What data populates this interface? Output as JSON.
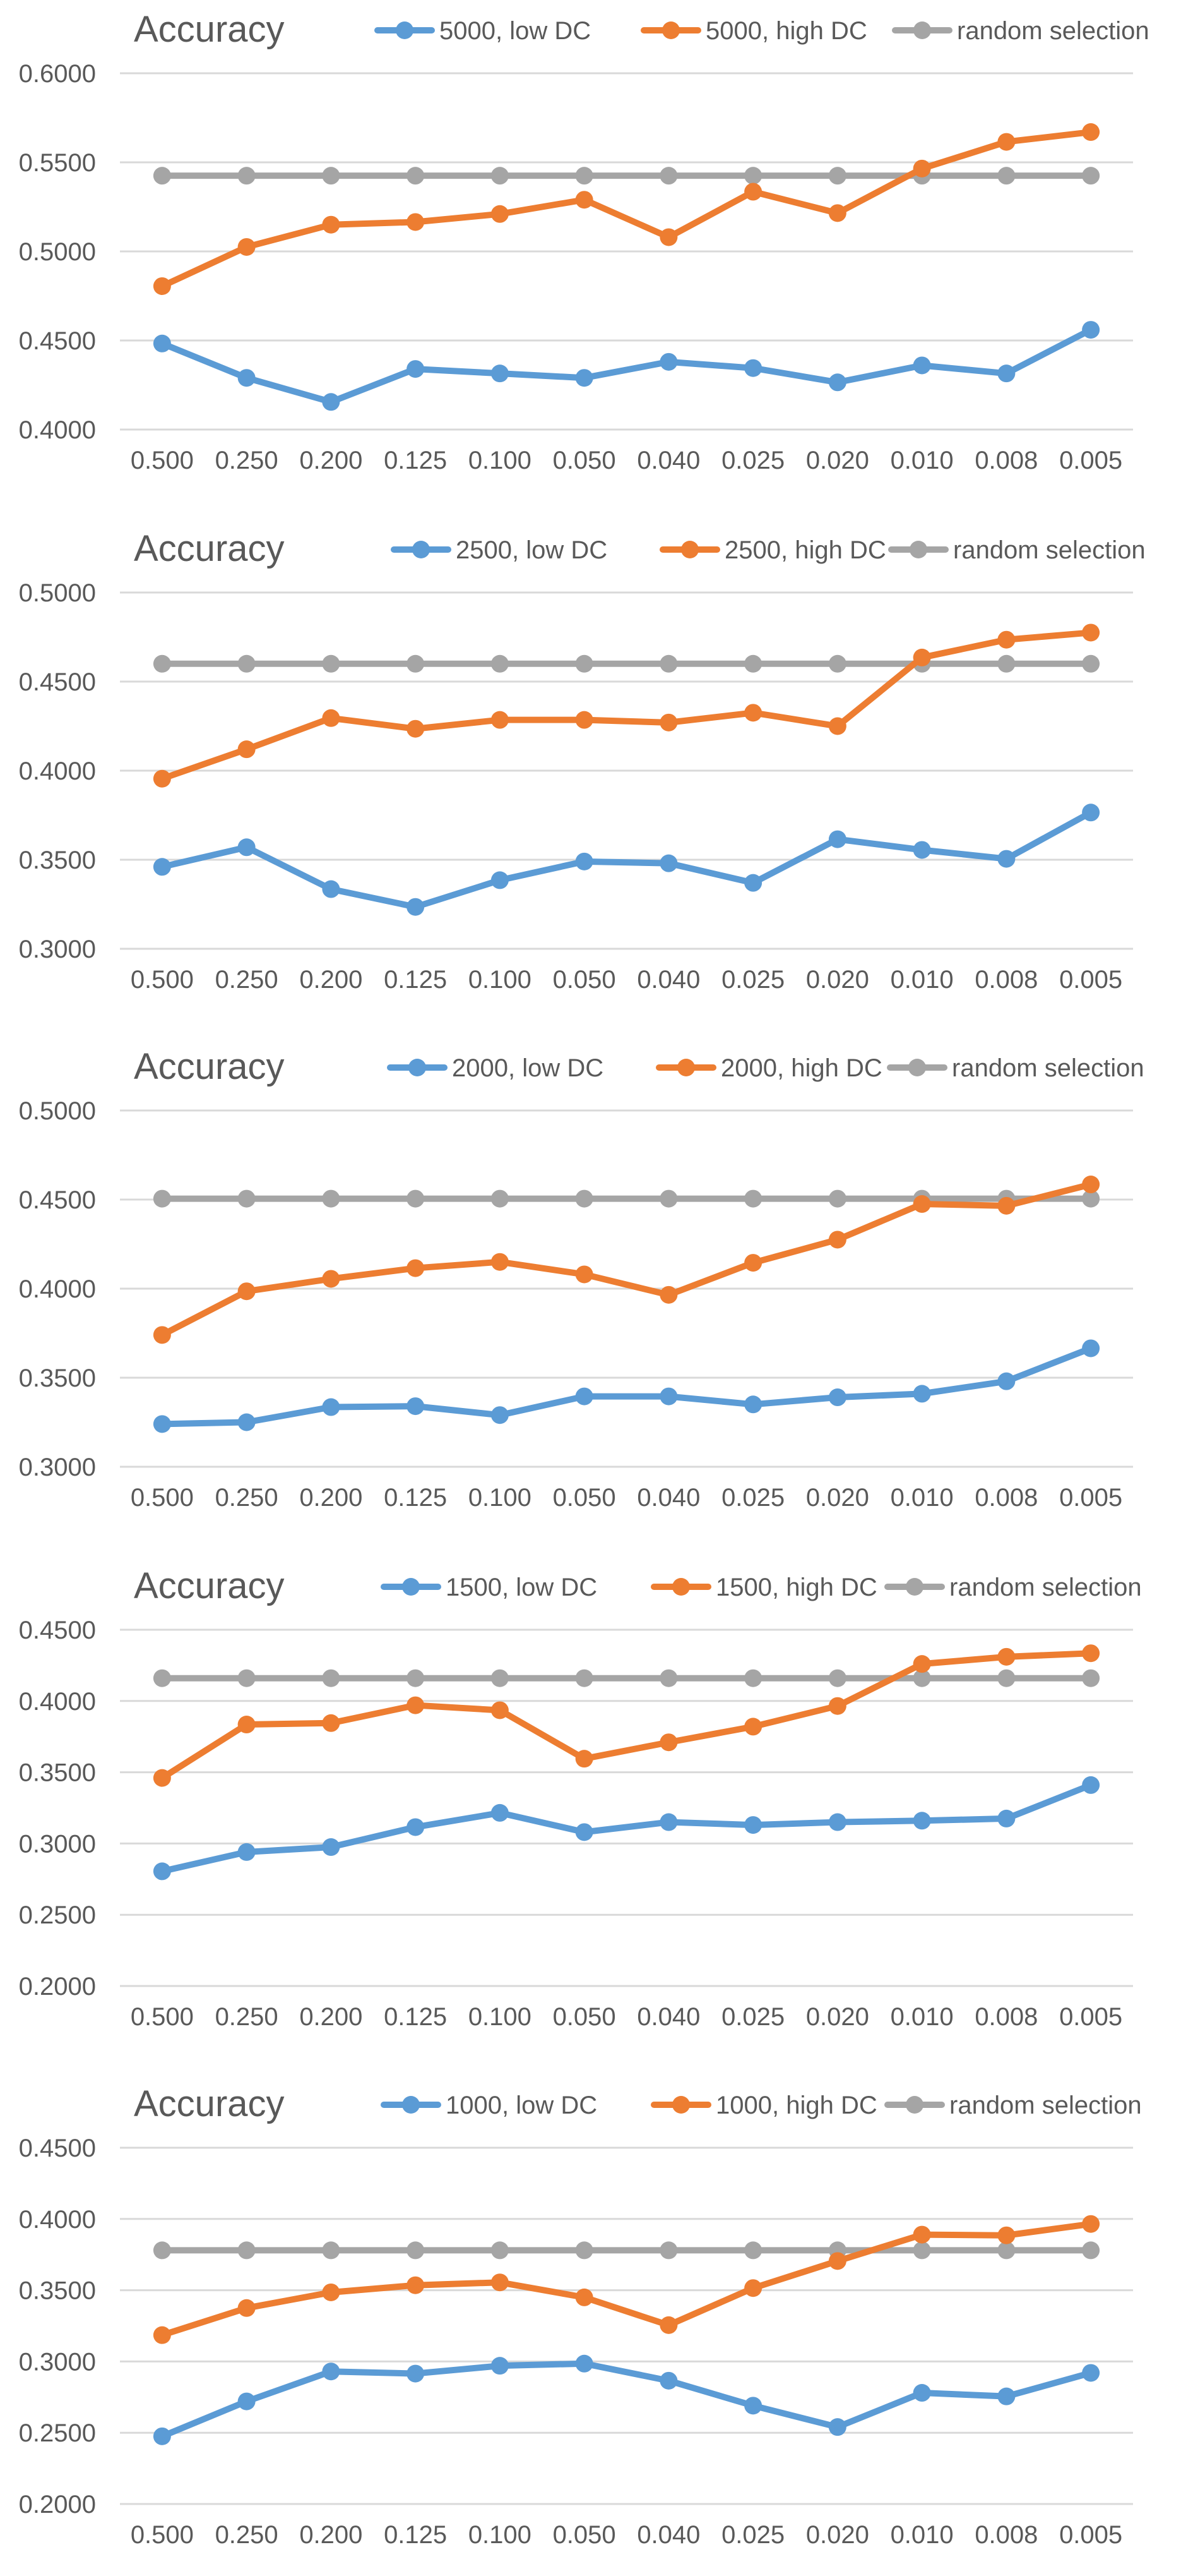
{
  "colors": {
    "low": "#5B9BD5",
    "high": "#ED7D31",
    "random": "#A5A5A5",
    "grid": "#D9D9D9",
    "text": "#595959"
  },
  "chart_data": [
    {
      "type": "line",
      "title": "Accuracy",
      "categories": [
        "0.500",
        "0.250",
        "0.200",
        "0.125",
        "0.100",
        "0.050",
        "0.040",
        "0.025",
        "0.020",
        "0.010",
        "0.008",
        "0.005"
      ],
      "ylim": [
        0.4,
        0.6
      ],
      "yticks": [
        "0.4000",
        "0.4500",
        "0.5000",
        "0.5500",
        "0.6000"
      ],
      "legend_position": "top",
      "series": [
        {
          "name": "5000, low DC",
          "color_key": "low",
          "values": [
            0.4483,
            0.429,
            0.4155,
            0.434,
            0.4315,
            0.429,
            0.438,
            0.4345,
            0.4265,
            0.436,
            0.4315,
            0.456
          ]
        },
        {
          "name": "5000, high DC",
          "color_key": "high",
          "values": [
            0.4805,
            0.5025,
            0.515,
            0.5165,
            0.521,
            0.529,
            0.508,
            0.5335,
            0.5215,
            0.5465,
            0.5615,
            0.567
          ]
        },
        {
          "name": "random selection",
          "color_key": "random",
          "values": [
            0.5425,
            0.5425,
            0.5425,
            0.5425,
            0.5425,
            0.5425,
            0.5425,
            0.5425,
            0.5425,
            0.5425,
            0.5425,
            0.5425
          ]
        }
      ]
    },
    {
      "type": "line",
      "title": "Accuracy",
      "categories": [
        "0.500",
        "0.250",
        "0.200",
        "0.125",
        "0.100",
        "0.050",
        "0.040",
        "0.025",
        "0.020",
        "0.010",
        "0.008",
        "0.005"
      ],
      "ylim": [
        0.3,
        0.5
      ],
      "yticks": [
        "0.3000",
        "0.3500",
        "0.4000",
        "0.4500",
        "0.5000"
      ],
      "legend_position": "top",
      "series": [
        {
          "name": "2500, low DC",
          "color_key": "low",
          "values": [
            0.346,
            0.357,
            0.3335,
            0.3235,
            0.3385,
            0.349,
            0.348,
            0.337,
            0.3615,
            0.3555,
            0.3505,
            0.3765
          ]
        },
        {
          "name": "2500, high DC",
          "color_key": "high",
          "values": [
            0.3955,
            0.412,
            0.4295,
            0.4235,
            0.4285,
            0.4285,
            0.427,
            0.4325,
            0.425,
            0.4635,
            0.4735,
            0.4775
          ]
        },
        {
          "name": "random selection",
          "color_key": "random",
          "values": [
            0.46,
            0.46,
            0.46,
            0.46,
            0.46,
            0.46,
            0.46,
            0.46,
            0.46,
            0.46,
            0.46,
            0.46
          ]
        }
      ]
    },
    {
      "type": "line",
      "title": "Accuracy",
      "categories": [
        "0.500",
        "0.250",
        "0.200",
        "0.125",
        "0.100",
        "0.050",
        "0.040",
        "0.025",
        "0.020",
        "0.010",
        "0.008",
        "0.005"
      ],
      "ylim": [
        0.3,
        0.5
      ],
      "yticks": [
        "0.3000",
        "0.3500",
        "0.4000",
        "0.4500",
        "0.5000"
      ],
      "legend_position": "top",
      "series": [
        {
          "name": "2000, low DC",
          "color_key": "low",
          "values": [
            0.324,
            0.325,
            0.3335,
            0.334,
            0.329,
            0.3395,
            0.3395,
            0.335,
            0.339,
            0.341,
            0.348,
            0.3665
          ]
        },
        {
          "name": "2000, high DC",
          "color_key": "high",
          "values": [
            0.374,
            0.3985,
            0.4055,
            0.4115,
            0.415,
            0.408,
            0.3965,
            0.4145,
            0.4275,
            0.4475,
            0.4465,
            0.4585
          ]
        },
        {
          "name": "random selection",
          "color_key": "random",
          "values": [
            0.4505,
            0.4505,
            0.4505,
            0.4505,
            0.4505,
            0.4505,
            0.4505,
            0.4505,
            0.4505,
            0.4505,
            0.4505,
            0.4505
          ]
        }
      ]
    },
    {
      "type": "line",
      "title": "Accuracy",
      "categories": [
        "0.500",
        "0.250",
        "0.200",
        "0.125",
        "0.100",
        "0.050",
        "0.040",
        "0.025",
        "0.020",
        "0.010",
        "0.008",
        "0.005"
      ],
      "ylim": [
        0.2,
        0.45
      ],
      "yticks": [
        "0.2000",
        "0.2500",
        "0.3000",
        "0.3500",
        "0.4000",
        "0.4500"
      ],
      "legend_position": "top",
      "series": [
        {
          "name": "1500, low DC",
          "color_key": "low",
          "values": [
            0.2805,
            0.294,
            0.2975,
            0.3115,
            0.3215,
            0.308,
            0.315,
            0.313,
            0.315,
            0.316,
            0.3175,
            0.341
          ]
        },
        {
          "name": "1500, high DC",
          "color_key": "high",
          "values": [
            0.346,
            0.3835,
            0.3845,
            0.397,
            0.3935,
            0.3595,
            0.371,
            0.382,
            0.3965,
            0.426,
            0.431,
            0.4335
          ]
        },
        {
          "name": "random selection",
          "color_key": "random",
          "values": [
            0.416,
            0.416,
            0.416,
            0.416,
            0.416,
            0.416,
            0.416,
            0.416,
            0.416,
            0.416,
            0.416,
            0.416
          ]
        }
      ]
    },
    {
      "type": "line",
      "title": "Accuracy",
      "categories": [
        "0.500",
        "0.250",
        "0.200",
        "0.125",
        "0.100",
        "0.050",
        "0.040",
        "0.025",
        "0.020",
        "0.010",
        "0.008",
        "0.005"
      ],
      "ylim": [
        0.2,
        0.45
      ],
      "yticks": [
        "0.2000",
        "0.2500",
        "0.3000",
        "0.3500",
        "0.4000",
        "0.4500"
      ],
      "legend_position": "top",
      "series": [
        {
          "name": "1000, low DC",
          "color_key": "low",
          "values": [
            0.2475,
            0.272,
            0.293,
            0.2915,
            0.297,
            0.2985,
            0.2865,
            0.269,
            0.254,
            0.278,
            0.2755,
            0.292
          ]
        },
        {
          "name": "1000, high DC",
          "color_key": "high",
          "values": [
            0.3185,
            0.3375,
            0.3485,
            0.3535,
            0.3555,
            0.345,
            0.3255,
            0.3515,
            0.3705,
            0.389,
            0.3885,
            0.3965
          ]
        },
        {
          "name": "random selection",
          "color_key": "random",
          "values": [
            0.378,
            0.378,
            0.378,
            0.378,
            0.378,
            0.378,
            0.378,
            0.378,
            0.378,
            0.378,
            0.378,
            0.378
          ]
        }
      ]
    }
  ]
}
